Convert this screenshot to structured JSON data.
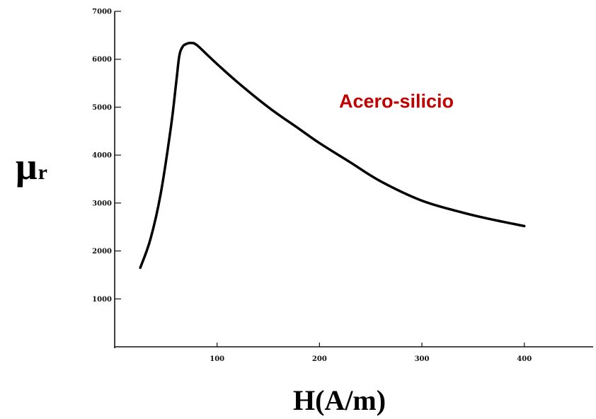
{
  "chart_data": {
    "type": "line",
    "title": "",
    "xlabel": "H(A/m)",
    "ylabel": {
      "symbol": "μ",
      "suffix": "r"
    },
    "annotation": "Acero-silicio",
    "annotation_color": "#c00000",
    "xlim": [
      0,
      470
    ],
    "ylim": [
      0,
      7000
    ],
    "xticks": [
      100,
      200,
      300,
      400
    ],
    "yticks": [
      1000,
      2000,
      3000,
      4000,
      5000,
      6000,
      7000
    ],
    "grid": false,
    "series": [
      {
        "x": [
          25,
          35,
          45,
          55,
          60,
          63,
          66,
          70,
          75,
          80,
          90,
          100,
          120,
          150,
          180,
          200,
          230,
          260,
          300,
          340,
          370,
          400
        ],
        "y": [
          1650,
          2250,
          3200,
          4600,
          5500,
          6050,
          6250,
          6320,
          6340,
          6300,
          6100,
          5900,
          5520,
          5000,
          4550,
          4250,
          3850,
          3450,
          3050,
          2800,
          2650,
          2520
        ]
      }
    ]
  }
}
